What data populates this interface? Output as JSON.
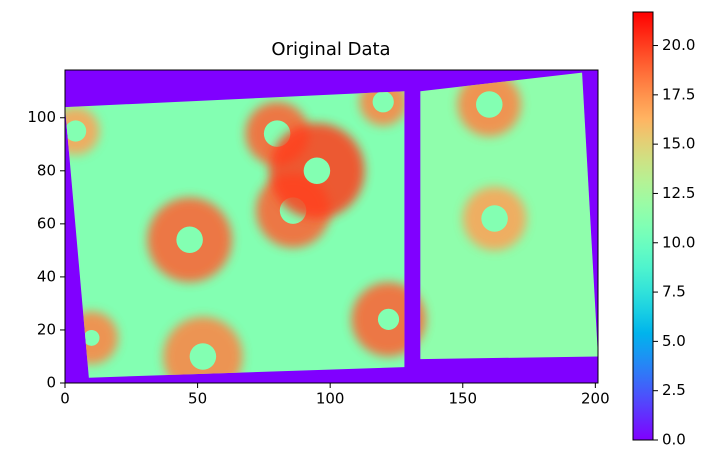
{
  "chart_data": {
    "type": "heatmap",
    "title": "Original Data",
    "colormap": "rainbow",
    "xlim": [
      0,
      201
    ],
    "ylim": [
      0,
      118
    ],
    "xticks": [
      0,
      50,
      100,
      150,
      200
    ],
    "yticks": [
      0,
      20,
      40,
      60,
      80,
      100
    ],
    "background": 0,
    "panels": [
      {
        "points": [
          [
            0,
            104
          ],
          [
            128,
            110
          ],
          [
            128,
            6
          ],
          [
            9,
            2
          ]
        ],
        "value": 11
      },
      {
        "points": [
          [
            134,
            110
          ],
          [
            195,
            117
          ],
          [
            201,
            10
          ],
          [
            134,
            9
          ]
        ],
        "value": 11.5
      }
    ],
    "spots": [
      {
        "x": 47,
        "y": 54,
        "ring": 19,
        "core": 11,
        "r_ring": 16,
        "r_core": 5
      },
      {
        "x": 52,
        "y": 10,
        "ring": 18,
        "core": 11,
        "r_ring": 15,
        "r_core": 5
      },
      {
        "x": 122,
        "y": 24,
        "ring": 19,
        "core": 11,
        "r_ring": 14,
        "r_core": 4
      },
      {
        "x": 10,
        "y": 17,
        "ring": 18,
        "core": 11,
        "r_ring": 10,
        "r_core": 3
      },
      {
        "x": 86,
        "y": 65,
        "ring": 19,
        "core": 11,
        "r_ring": 14,
        "r_core": 5
      },
      {
        "x": 80,
        "y": 94,
        "ring": 19,
        "core": 11,
        "r_ring": 12,
        "r_core": 5
      },
      {
        "x": 95,
        "y": 80,
        "ring": 20,
        "core": 11,
        "r_ring": 18,
        "r_core": 5
      },
      {
        "x": 120,
        "y": 106,
        "ring": 18,
        "core": 11,
        "r_ring": 9,
        "r_core": 4
      },
      {
        "x": 160,
        "y": 105,
        "ring": 18,
        "core": 11,
        "r_ring": 12,
        "r_core": 5
      },
      {
        "x": 162,
        "y": 62,
        "ring": 17,
        "core": 11,
        "r_ring": 12,
        "r_core": 5
      },
      {
        "x": 4,
        "y": 95,
        "ring": 17,
        "core": 11,
        "r_ring": 9,
        "r_core": 4
      }
    ],
    "colorbar": {
      "clim": [
        0,
        21.7
      ],
      "ticks": [
        {
          "value": 0,
          "label": "0.0"
        },
        {
          "value": 2.5,
          "label": "2.5"
        },
        {
          "value": 5,
          "label": "5.0"
        },
        {
          "value": 7.5,
          "label": "7.5"
        },
        {
          "value": 10,
          "label": "10.0"
        },
        {
          "value": 12.5,
          "label": "12.5"
        },
        {
          "value": 15,
          "label": "15.0"
        },
        {
          "value": 17.5,
          "label": "17.5"
        },
        {
          "value": 20,
          "label": "20.0"
        }
      ]
    }
  }
}
